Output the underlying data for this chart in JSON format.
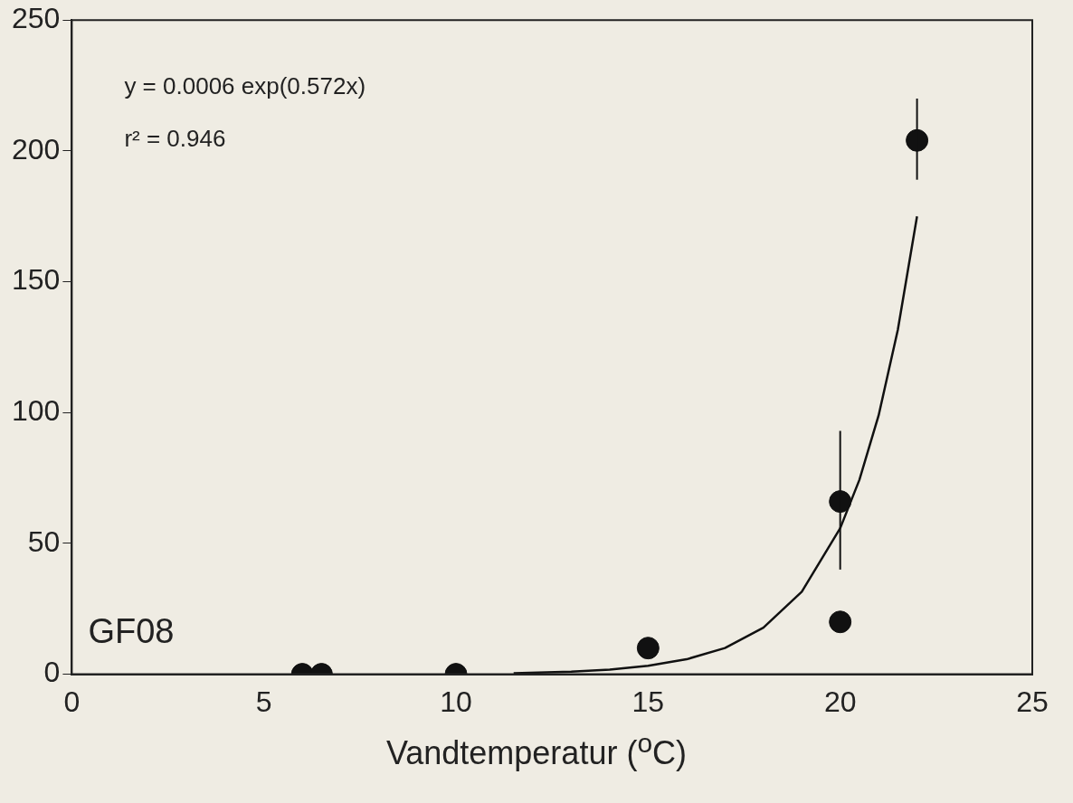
{
  "chart_data": {
    "type": "scatter",
    "xlabel": "Vandtemperatur ($^{o}$C)",
    "annotations": [
      "y = 0.0006 exp(0.572x)",
      "r² = 0.946",
      "GF08"
    ],
    "xlim": [
      0,
      25
    ],
    "xticks": [
      0,
      5,
      10,
      15,
      20,
      25
    ],
    "ylim": [
      0,
      250
    ],
    "yticks": [
      0,
      50,
      100,
      150,
      200,
      250
    ],
    "grid": false,
    "legend": false,
    "marker": "circle",
    "series": [
      {
        "color": "#111111",
        "x": [
          6,
          6.5,
          10,
          15,
          20,
          20,
          22
        ],
        "values": [
          0,
          0,
          0,
          10,
          20,
          66,
          204
        ],
        "errors": [
          null,
          null,
          null,
          null,
          null,
          [
            40,
            93
          ],
          [
            189,
            220
          ]
        ]
      },
      {
        "type": "line",
        "color": "#111111",
        "marker": "none",
        "x": [
          11.5,
          13,
          14,
          15,
          16,
          17,
          18,
          19,
          20,
          20.5,
          21,
          21.5,
          22
        ],
        "values": [
          0.4,
          1.0,
          1.8,
          3.2,
          5.7,
          10.0,
          17.8,
          31.5,
          55.8,
          74.3,
          98.9,
          131.6,
          175
        ]
      }
    ]
  }
}
